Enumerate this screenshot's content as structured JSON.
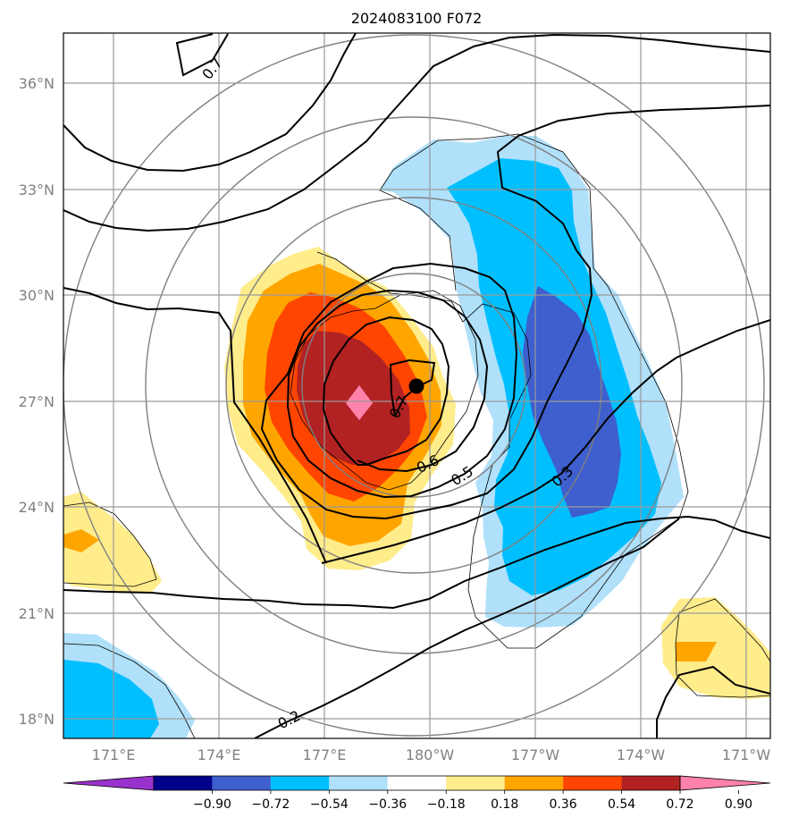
{
  "title": "2024083100 F072",
  "map": {
    "lon_ticks": [
      "171°E",
      "174°E",
      "177°E",
      "180°W",
      "177°W",
      "174°W",
      "171°W"
    ],
    "lat_ticks": [
      "36°N",
      "33°N",
      "30°N",
      "27°N",
      "24°N",
      "21°N",
      "18°N"
    ],
    "contour_labels": [
      "0.7",
      "0.7",
      "0.6",
      "0.5",
      "0.3",
      "0.2"
    ],
    "storm_center_icon": "filled-circle-marker",
    "colors": {
      "tick_text": "#808080",
      "grid": "#9a9a9a",
      "contour": "#000000"
    }
  },
  "colorbar": {
    "tick_labels": [
      "−0.90",
      "−0.72",
      "−0.54",
      "−0.36",
      "−0.18",
      "0.18",
      "0.36",
      "0.54",
      "0.72",
      "0.90"
    ],
    "colors": [
      "#9932cc",
      "#00008b",
      "#3e5fcd",
      "#00bfff",
      "#b0e0fa",
      "#ffffff",
      "#ffec8b",
      "#ffa500",
      "#ff4500",
      "#b22222",
      "#ff82ab"
    ]
  }
}
